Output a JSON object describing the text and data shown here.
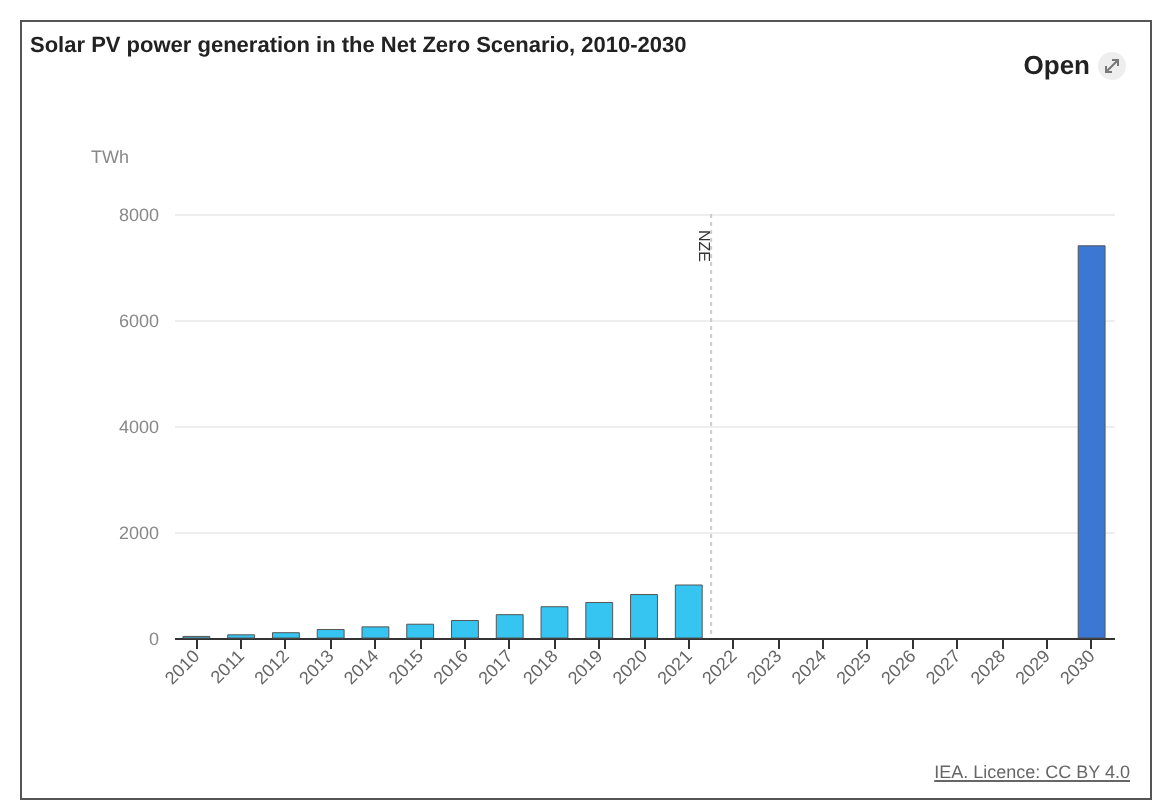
{
  "chart_data": {
    "type": "bar",
    "title": "Solar PV power generation in the Net Zero Scenario, 2010-2030",
    "ylabel": "TWh",
    "categories": [
      "2010",
      "2011",
      "2012",
      "2013",
      "2014",
      "2015",
      "2016",
      "2017",
      "2018",
      "2019",
      "2020",
      "2021",
      "2022",
      "2023",
      "2024",
      "2025",
      "2026",
      "2027",
      "2028",
      "2029",
      "2030"
    ],
    "values": [
      30,
      60,
      100,
      160,
      210,
      260,
      330,
      440,
      590,
      670,
      820,
      1000,
      null,
      null,
      null,
      null,
      null,
      null,
      null,
      null,
      7400
    ],
    "colors": [
      "#35c5f0",
      "#35c5f0",
      "#35c5f0",
      "#35c5f0",
      "#35c5f0",
      "#35c5f0",
      "#35c5f0",
      "#35c5f0",
      "#35c5f0",
      "#35c5f0",
      "#35c5f0",
      "#35c5f0",
      "#35c5f0",
      "#35c5f0",
      "#35c5f0",
      "#35c5f0",
      "#35c5f0",
      "#35c5f0",
      "#35c5f0",
      "#35c5f0",
      "#3b78d4"
    ],
    "ylim": [
      0,
      8000
    ],
    "yticks": [
      0,
      2000,
      4000,
      6000,
      8000
    ],
    "grid": "y",
    "ref_lines": [
      {
        "axis": "x",
        "value": "2022",
        "label": "NZE"
      }
    ],
    "annotations": [
      "Open",
      "IEA. Licence: CC BY 4.0"
    ]
  }
}
